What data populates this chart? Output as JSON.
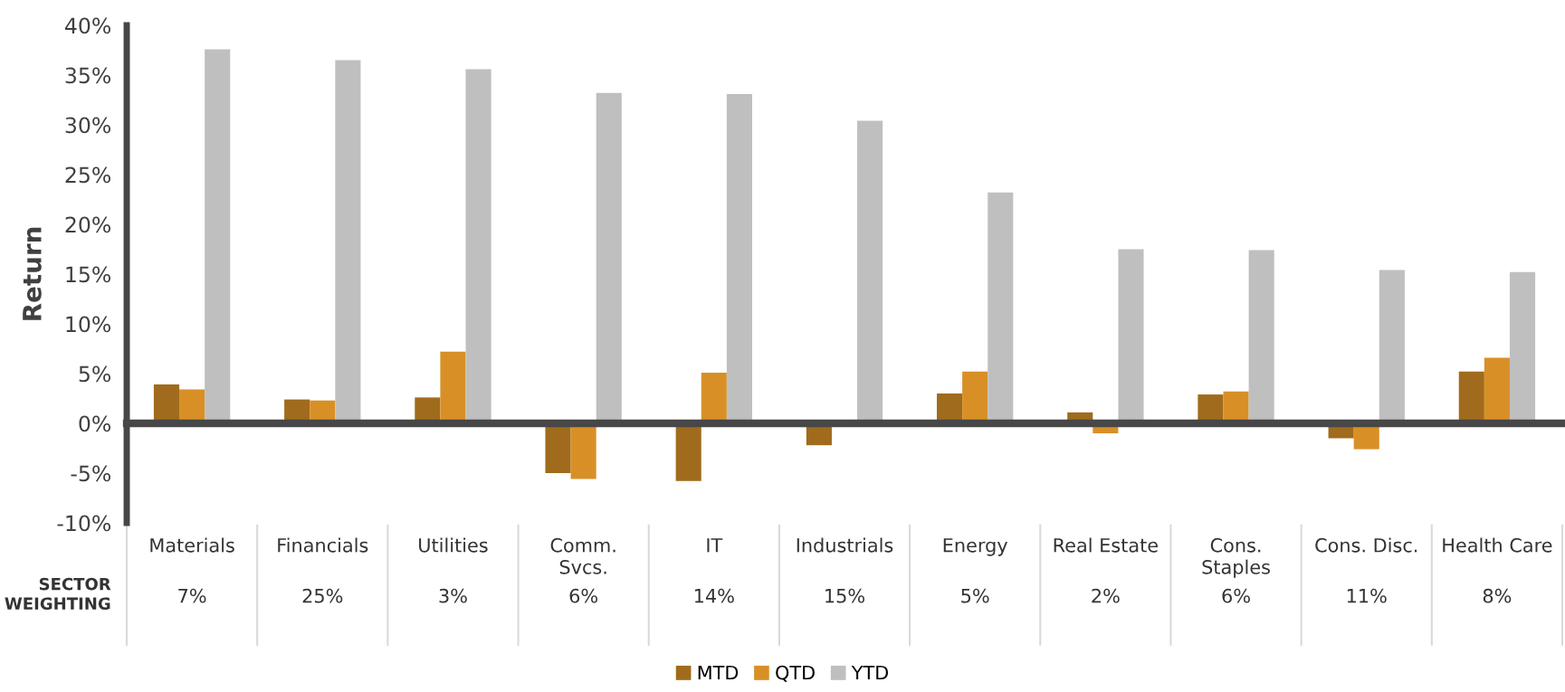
{
  "chart_data": {
    "type": "bar",
    "ylabel": "Return",
    "categories": [
      "Materials",
      "Financials",
      "Utilities",
      "Comm.\nSvcs.",
      "IT",
      "Industrials",
      "Energy",
      "Real Estate",
      "Cons.\nStaples",
      "Cons. Disc.",
      "Health Care"
    ],
    "series": [
      {
        "name": "MTD",
        "color": "#a06b1c",
        "values": [
          3.9,
          2.4,
          2.6,
          -5.0,
          -5.8,
          -2.2,
          3.0,
          1.1,
          2.9,
          -1.5,
          5.2
        ]
      },
      {
        "name": "QTD",
        "color": "#d89026",
        "values": [
          3.4,
          2.3,
          7.2,
          -5.6,
          5.1,
          0,
          5.2,
          -1.0,
          3.2,
          -2.6,
          6.6
        ]
      },
      {
        "name": "YTD",
        "color": "#bfbfbf",
        "values": [
          37.6,
          36.5,
          35.6,
          33.2,
          33.1,
          30.4,
          23.2,
          17.5,
          17.4,
          15.4,
          15.2
        ]
      }
    ],
    "ylim": [
      -10,
      40
    ],
    "yticks": [
      {
        "value": -10,
        "label": "-10%"
      },
      {
        "value": -5,
        "label": "-5%"
      },
      {
        "value": 0,
        "label": "0%"
      },
      {
        "value": 5,
        "label": "5%"
      },
      {
        "value": 10,
        "label": "10%"
      },
      {
        "value": 15,
        "label": "15%"
      },
      {
        "value": 20,
        "label": "20%"
      },
      {
        "value": 25,
        "label": "25%"
      },
      {
        "value": 30,
        "label": "30%"
      },
      {
        "value": 35,
        "label": "35%"
      },
      {
        "value": 40,
        "label": "40%"
      }
    ],
    "annotations": [
      "SECTOR\nWEIGHTING",
      "7%",
      "25%",
      "3%",
      "6%",
      "14%",
      "15%",
      "5%",
      "2%",
      "6%",
      "11%",
      "8%"
    ],
    "legend": "bottom"
  }
}
